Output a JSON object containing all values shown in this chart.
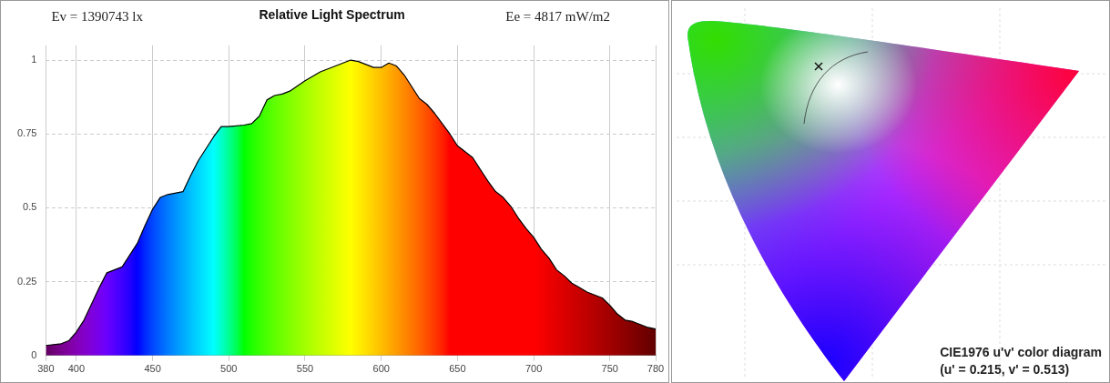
{
  "chart_data": [
    {
      "type": "area",
      "title": "Relative Light Spectrum",
      "annotations": [
        "Ev = 1390743 lx",
        "Ee = 4817 mW/m2"
      ],
      "x": [
        380,
        390,
        395,
        400,
        405,
        410,
        415,
        420,
        425,
        430,
        435,
        440,
        445,
        450,
        455,
        460,
        470,
        475,
        480,
        485,
        490,
        495,
        500,
        510,
        515,
        520,
        525,
        530,
        535,
        540,
        550,
        560,
        570,
        575,
        580,
        585,
        590,
        595,
        600,
        605,
        610,
        615,
        620,
        625,
        630,
        635,
        640,
        645,
        650,
        655,
        660,
        665,
        670,
        675,
        680,
        685,
        690,
        695,
        700,
        705,
        710,
        715,
        720,
        725,
        730,
        735,
        740,
        745,
        750,
        755,
        760,
        765,
        770,
        775,
        780
      ],
      "series": [
        {
          "color": "#000000",
          "values": [
            0.034,
            0.04,
            0.05,
            0.08,
            0.12,
            0.175,
            0.23,
            0.28,
            0.29,
            0.3,
            0.34,
            0.38,
            0.44,
            0.495,
            0.535,
            0.545,
            0.555,
            0.61,
            0.66,
            0.7,
            0.74,
            0.775,
            0.775,
            0.78,
            0.785,
            0.81,
            0.865,
            0.88,
            0.885,
            0.895,
            0.93,
            0.96,
            0.98,
            0.99,
            1.0,
            0.995,
            0.985,
            0.975,
            0.975,
            0.99,
            0.98,
            0.95,
            0.91,
            0.87,
            0.85,
            0.82,
            0.785,
            0.75,
            0.71,
            0.69,
            0.67,
            0.63,
            0.59,
            0.555,
            0.535,
            0.505,
            0.465,
            0.43,
            0.4,
            0.36,
            0.33,
            0.29,
            0.27,
            0.245,
            0.23,
            0.215,
            0.205,
            0.195,
            0.17,
            0.14,
            0.12,
            0.115,
            0.105,
            0.095,
            0.09
          ]
        }
      ],
      "xlim": [
        380,
        780
      ],
      "xticks": [
        380,
        400,
        450,
        500,
        550,
        600,
        650,
        700,
        750,
        780
      ],
      "ylim": [
        0,
        1.05
      ],
      "yticks": [
        0,
        0.25,
        0.5,
        0.75,
        1
      ],
      "grid": true
    },
    {
      "type": "other",
      "annotations": [
        "CIE1976 u'v' color diagram",
        "(u' = 0.215, v' = 0.513)"
      ]
    }
  ]
}
